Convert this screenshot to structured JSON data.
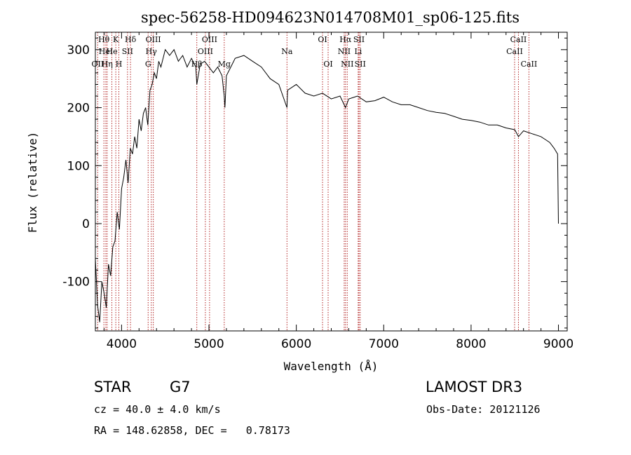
{
  "chart_data": {
    "type": "line",
    "title": "spec-56258-HD094623N014708M01_sp06-125.fits",
    "xlabel": "Wavelength (Å)",
    "ylabel": "Flux (relative)",
    "xlim": [
      3700,
      9100
    ],
    "ylim": [
      -185,
      330
    ],
    "xticks": [
      4000,
      5000,
      6000,
      7000,
      8000,
      9000
    ],
    "yticks": [
      -100,
      0,
      100,
      200,
      300
    ],
    "series": [
      {
        "name": "flux",
        "x": [
          3700,
          3725,
          3750,
          3775,
          3800,
          3825,
          3850,
          3875,
          3900,
          3925,
          3950,
          3975,
          4000,
          4025,
          4050,
          4075,
          4100,
          4125,
          4150,
          4175,
          4200,
          4225,
          4250,
          4275,
          4300,
          4325,
          4350,
          4375,
          4400,
          4425,
          4450,
          4475,
          4500,
          4550,
          4600,
          4650,
          4700,
          4750,
          4800,
          4850,
          4861,
          4900,
          4950,
          5000,
          5050,
          5100,
          5150,
          5175,
          5183,
          5200,
          5250,
          5300,
          5400,
          5500,
          5600,
          5700,
          5800,
          5893,
          5900,
          6000,
          6100,
          6200,
          6300,
          6400,
          6500,
          6563,
          6600,
          6700,
          6800,
          6900,
          7000,
          7100,
          7200,
          7300,
          7400,
          7500,
          7600,
          7700,
          7800,
          7900,
          8000,
          8100,
          8200,
          8300,
          8400,
          8500,
          8542,
          8600,
          8700,
          8800,
          8850,
          8900,
          8950,
          8990,
          9000
        ],
        "y": [
          -60,
          -140,
          -170,
          -100,
          -120,
          -145,
          -70,
          -90,
          -40,
          -30,
          20,
          -10,
          60,
          80,
          110,
          70,
          130,
          120,
          150,
          130,
          180,
          160,
          190,
          200,
          170,
          230,
          240,
          260,
          250,
          280,
          270,
          285,
          300,
          290,
          300,
          280,
          290,
          270,
          285,
          270,
          240,
          275,
          280,
          270,
          260,
          270,
          255,
          220,
          200,
          255,
          270,
          285,
          290,
          280,
          270,
          250,
          240,
          200,
          230,
          240,
          225,
          220,
          225,
          215,
          220,
          200,
          215,
          220,
          210,
          212,
          218,
          210,
          205,
          205,
          200,
          195,
          192,
          190,
          185,
          180,
          178,
          175,
          170,
          170,
          165,
          162,
          150,
          160,
          155,
          150,
          145,
          140,
          130,
          120,
          0
        ]
      }
    ],
    "lines": [
      {
        "name": "Hθ",
        "x": 3798,
        "row": 0
      },
      {
        "name": "OII",
        "x": 3727,
        "row": 2
      },
      {
        "name": "HeI",
        "x": 3820,
        "row": 1
      },
      {
        "name": "Hη",
        "x": 3835,
        "row": 2
      },
      {
        "name": "He",
        "x": 3889,
        "row": 1
      },
      {
        "name": "K",
        "x": 3934,
        "row": 0
      },
      {
        "name": "H",
        "x": 3969,
        "row": 2
      },
      {
        "name": "SII",
        "x": 4068,
        "row": 1
      },
      {
        "name": "Hδ",
        "x": 4102,
        "row": 0
      },
      {
        "name": "OIII",
        "x": 4363,
        "row": 0
      },
      {
        "name": "Hγ",
        "x": 4340,
        "row": 1
      },
      {
        "name": "G",
        "x": 4304,
        "row": 2
      },
      {
        "name": "Hβ",
        "x": 4861,
        "row": 2
      },
      {
        "name": "OIII",
        "x": 5007,
        "row": 0
      },
      {
        "name": "OIII",
        "x": 4959,
        "row": 1
      },
      {
        "name": "Mg",
        "x": 5175,
        "row": 2
      },
      {
        "name": "Na",
        "x": 5893,
        "row": 1
      },
      {
        "name": "OI",
        "x": 6300,
        "row": 0
      },
      {
        "name": "OI",
        "x": 6364,
        "row": 2
      },
      {
        "name": "Hα",
        "x": 6563,
        "row": 0
      },
      {
        "name": "NII",
        "x": 6548,
        "row": 1
      },
      {
        "name": "NII",
        "x": 6583,
        "row": 2
      },
      {
        "name": "SII",
        "x": 6717,
        "row": 0
      },
      {
        "name": "Li",
        "x": 6708,
        "row": 1
      },
      {
        "name": "SII",
        "x": 6731,
        "row": 2
      },
      {
        "name": "CaII",
        "x": 8542,
        "row": 0
      },
      {
        "name": "CaII",
        "x": 8498,
        "row": 1
      },
      {
        "name": "CaII",
        "x": 8662,
        "row": 2
      }
    ]
  },
  "info": {
    "class_label": "STAR",
    "subclass": "G7",
    "survey": "LAMOST DR3",
    "cz": "cz = 40.0 ± 4.0 km/s",
    "obs_date": "Obs-Date: 20121126",
    "coords": "RA = 148.62858, DEC =   0.78173"
  },
  "colors": {
    "line_marker": "#b22222",
    "spectrum": "#000000"
  }
}
